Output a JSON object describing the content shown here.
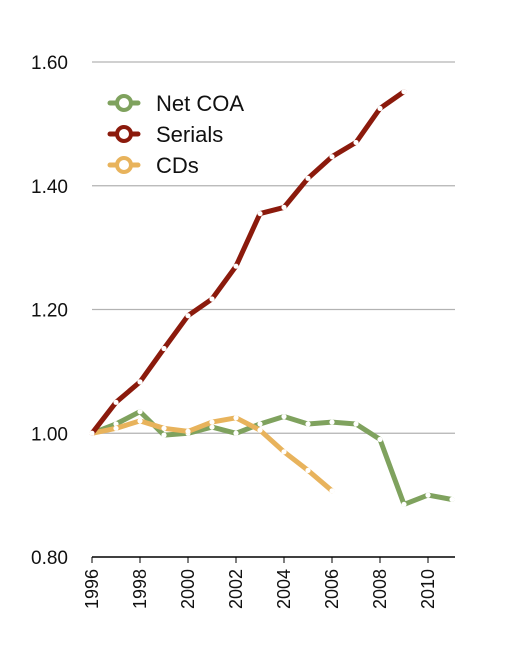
{
  "chart_data": {
    "type": "line",
    "title": "",
    "xlabel": "",
    "ylabel": "",
    "x_ticks": [
      "1996",
      "1998",
      "2000",
      "2002",
      "2004",
      "2006",
      "2008",
      "2010"
    ],
    "y_ticks": [
      "0.80",
      "1.00",
      "1.20",
      "1.40",
      "1.60"
    ],
    "xlim": [
      1996,
      2012
    ],
    "ylim": [
      0.8,
      1.6
    ],
    "grid": true,
    "legend": "top-left",
    "series": [
      {
        "name": "Net COA",
        "color": "#7fa25e",
        "x": [
          1996,
          1997,
          1998,
          1999,
          2000,
          2001,
          2002,
          2003,
          2004,
          2005,
          2006,
          2007,
          2008,
          2009,
          2010,
          2011
        ],
        "y": [
          1.0,
          1.015,
          1.035,
          0.997,
          1.0,
          1.01,
          1.0,
          1.015,
          1.027,
          1.015,
          1.018,
          1.015,
          0.99,
          0.885,
          0.9,
          0.893
        ]
      },
      {
        "name": "Serials",
        "color": "#8b1a0c",
        "x": [
          1996,
          1997,
          1998,
          1999,
          2000,
          2001,
          2002,
          2003,
          2004,
          2005,
          2006,
          2007,
          2008,
          2009
        ],
        "y": [
          1.0,
          1.05,
          1.083,
          1.137,
          1.19,
          1.217,
          1.27,
          1.355,
          1.365,
          1.412,
          1.447,
          1.47,
          1.525,
          1.552
        ]
      },
      {
        "name": "CDs",
        "color": "#e8b35c",
        "x": [
          1996,
          1997,
          1998,
          1999,
          2000,
          2001,
          2002,
          2003,
          2004,
          2005,
          2006
        ],
        "y": [
          1.0,
          1.008,
          1.02,
          1.008,
          1.003,
          1.018,
          1.025,
          1.005,
          0.97,
          0.94,
          0.907
        ]
      }
    ]
  }
}
